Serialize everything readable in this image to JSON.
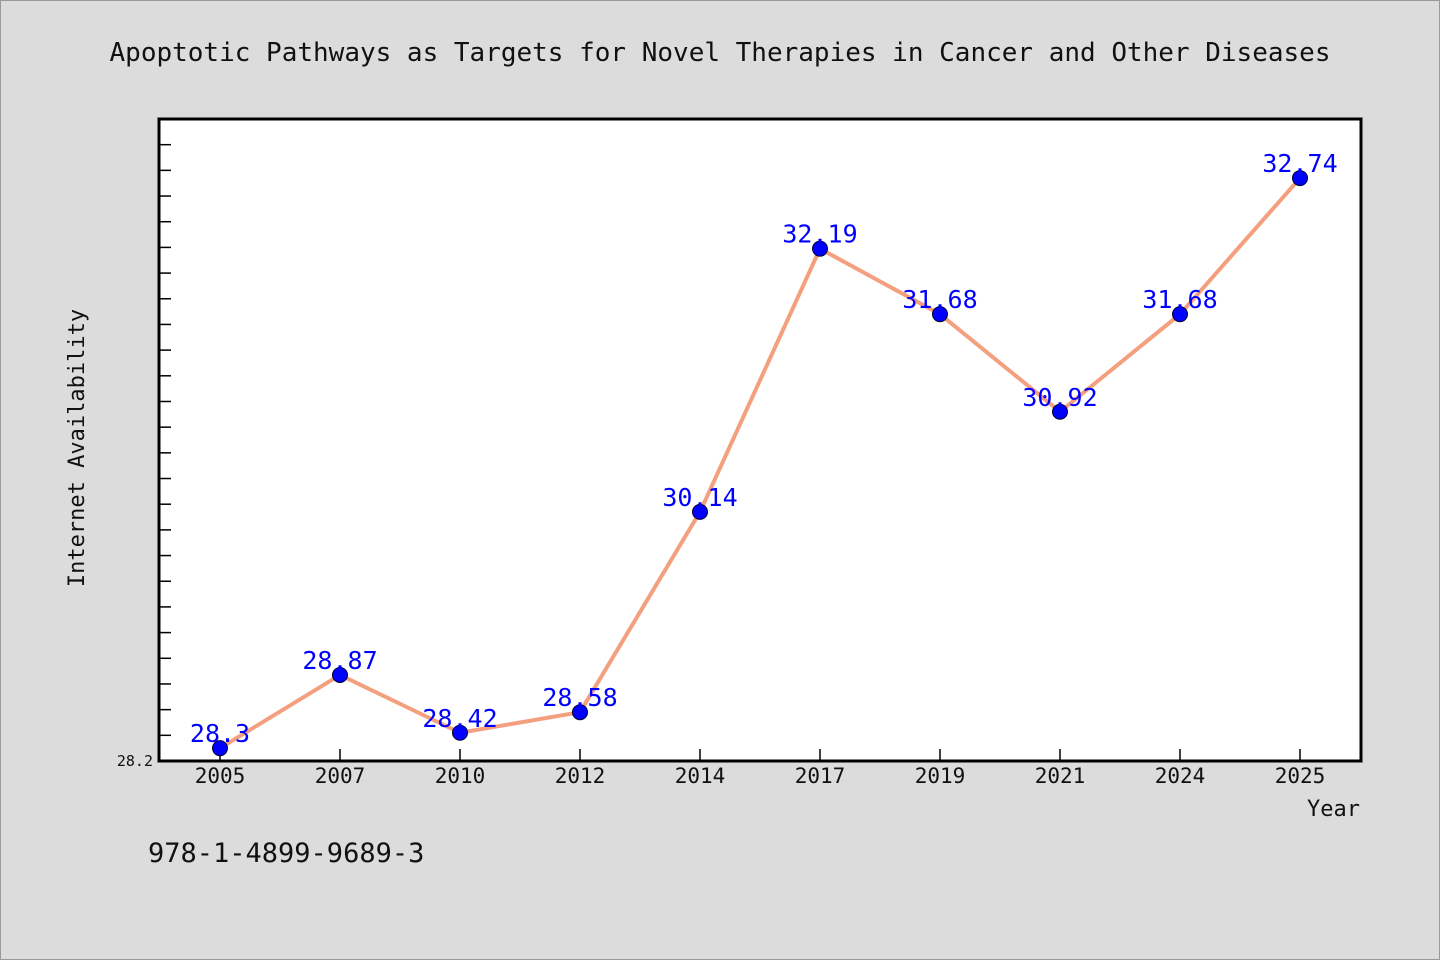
{
  "chart_data": {
    "type": "line",
    "title": "Apoptotic Pathways as Targets for Novel Therapies in Cancer and Other Diseases",
    "xlabel": "Year",
    "ylabel": "Internet Availability",
    "categories": [
      "2005",
      "2007",
      "2010",
      "2012",
      "2014",
      "2017",
      "2019",
      "2021",
      "2024",
      "2025"
    ],
    "series": [
      {
        "values": [
          28.3,
          28.87,
          28.42,
          28.58,
          30.14,
          32.19,
          31.68,
          30.92,
          31.68,
          32.74
        ],
        "labels": [
          "28.3",
          "28.87",
          "28.42",
          "28.58",
          "30.14",
          "32.19",
          "31.68",
          "30.92",
          "31.68",
          "32.74"
        ]
      }
    ],
    "ylim": [
      28.2,
      33.2
    ],
    "yticks_labeled": [
      "28.2"
    ],
    "minor_tick_step": 0.2,
    "grid": false,
    "line_color": "#f4a07f",
    "marker_color": "#0000ff",
    "label_color": "#0000ff"
  },
  "footnote": "978-1-4899-9689-3"
}
